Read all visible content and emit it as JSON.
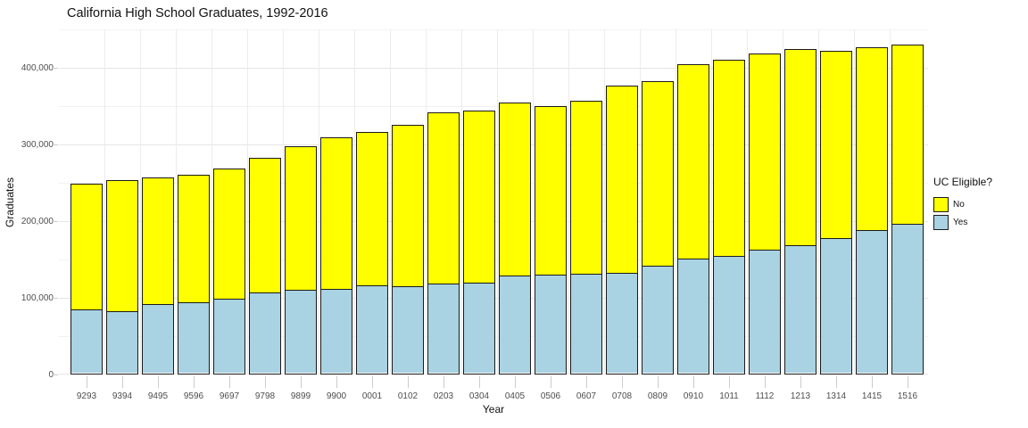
{
  "chart_data": {
    "type": "bar",
    "stacked": true,
    "title": "California High School Graduates, 1992-2016",
    "xlabel": "Year",
    "ylabel": "Graduates",
    "categories": [
      "9293",
      "9394",
      "9495",
      "9596",
      "9697",
      "9798",
      "9899",
      "9900",
      "0001",
      "0102",
      "0203",
      "0304",
      "0405",
      "0506",
      "0607",
      "0708",
      "0809",
      "0910",
      "1011",
      "1112",
      "1213",
      "1314",
      "1415",
      "1516"
    ],
    "series": [
      {
        "name": "Yes",
        "color": "#a9d2e2",
        "values": [
          82000,
          80000,
          89000,
          92000,
          96000,
          105000,
          108000,
          109000,
          114000,
          113000,
          116000,
          118000,
          127000,
          128000,
          129000,
          130000,
          140000,
          149000,
          152000,
          160000,
          166000,
          176000,
          186000,
          194000
        ]
      },
      {
        "name": "No",
        "color": "#ffff00",
        "values": [
          167000,
          174000,
          168000,
          168000,
          173000,
          177000,
          190000,
          200000,
          202000,
          213000,
          226000,
          226000,
          228000,
          222000,
          228000,
          247000,
          243000,
          256000,
          259000,
          259000,
          258000,
          246000,
          241000,
          236000
        ]
      }
    ],
    "totals": [
      249000,
      254000,
      257000,
      260000,
      269000,
      282000,
      298000,
      309000,
      316000,
      326000,
      342000,
      344000,
      355000,
      350000,
      357000,
      377000,
      383000,
      405000,
      411000,
      419000,
      424000,
      422000,
      427000,
      430000
    ],
    "ylim": [
      0,
      450000
    ],
    "y_major_ticks": [
      {
        "value": 0,
        "label": "0"
      },
      {
        "value": 100000,
        "label": "100,000"
      },
      {
        "value": 200000,
        "label": "200,000"
      },
      {
        "value": 300000,
        "label": "300,000"
      },
      {
        "value": 400000,
        "label": "400,000"
      }
    ],
    "y_minor_ticks": [
      50000,
      150000,
      250000,
      350000,
      450000
    ],
    "grid": true,
    "legend_title": "UC Eligible?",
    "legend_position": "right",
    "legend_entries": [
      {
        "label": "No",
        "color": "#ffff00"
      },
      {
        "label": "Yes",
        "color": "#a9d2e2"
      }
    ],
    "bar_border_color": "#1a1a1a"
  }
}
